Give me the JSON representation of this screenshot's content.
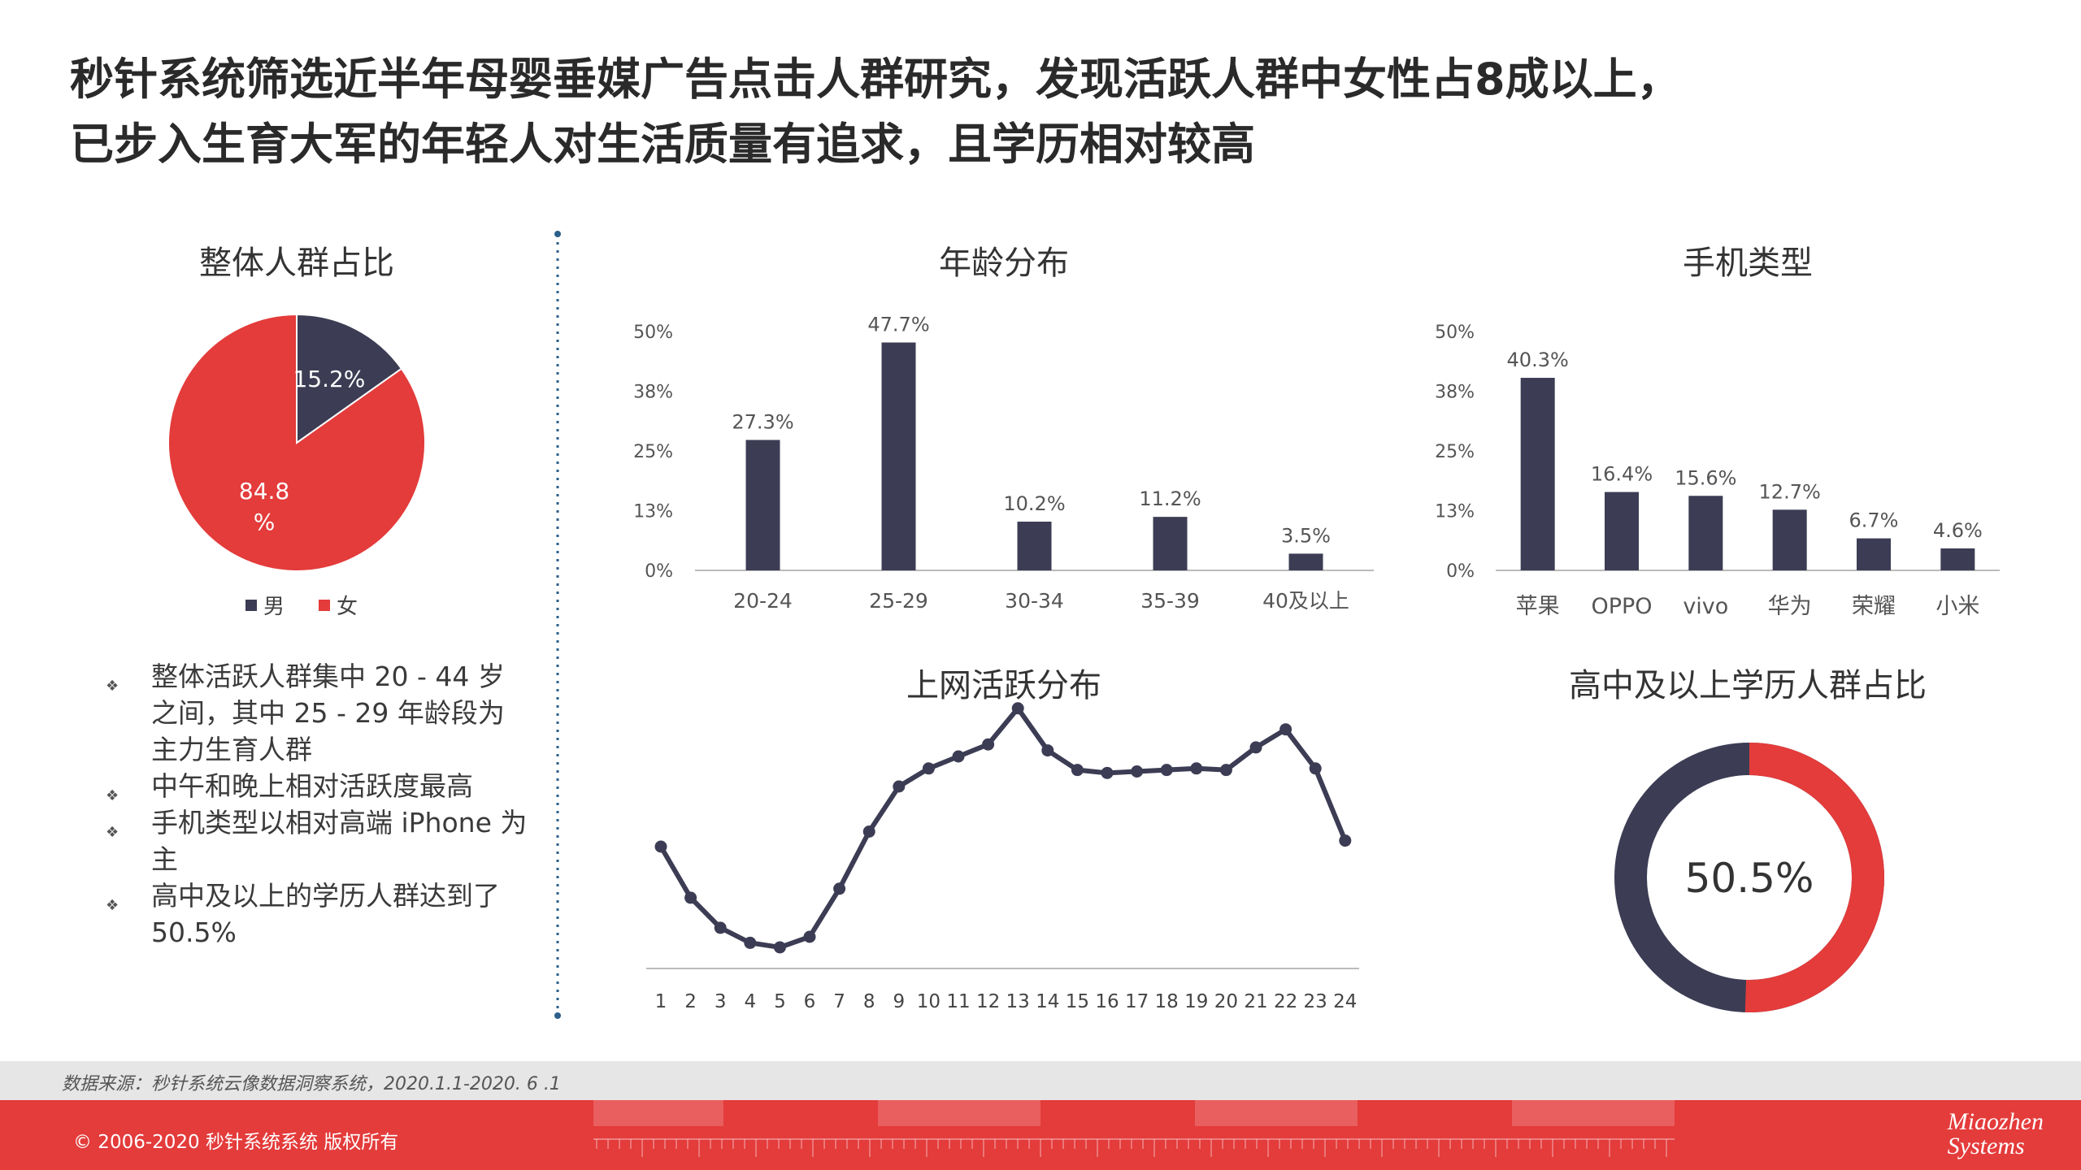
{
  "header": {
    "title_line1": "秒针系统筛选近半年母婴垂媒广告点击人群研究，发现活跃人群中女性占8成以上，",
    "title_line2": "已步入生育大军的年轻人对生活质量有追求，且学历相对较高"
  },
  "colors": {
    "navy": "#3c3d54",
    "red": "#e43b3b"
  },
  "bullets": [
    "整体活跃人群集中 20 - 44 岁之间，其中 25 - 29 年龄段为主力生育人群",
    "中午和晚上相对活跃度最高",
    "手机类型以相对高端 iPhone 为主",
    "高中及以上的学历人群达到了 50.5%"
  ],
  "bullet_marker": "❖",
  "chart_data": [
    {
      "type": "pie",
      "title": "整体人群占比",
      "categories": [
        "男",
        "女"
      ],
      "values": [
        15.2,
        84.8
      ],
      "labels": [
        "15.2%",
        "84.8\n%"
      ],
      "colors": [
        "#3c3d54",
        "#e43b3b"
      ],
      "legend": "bottom"
    },
    {
      "type": "bar",
      "title": "年龄分布",
      "categories": [
        "20-24",
        "25-29",
        "30-34",
        "35-39",
        "40及以上"
      ],
      "values": [
        27.3,
        47.7,
        10.2,
        11.2,
        3.5
      ],
      "labels": [
        "27.3%",
        "47.7%",
        "10.2%",
        "11.2%",
        "3.5%"
      ],
      "yticks": [
        "0%",
        "13%",
        "25%",
        "38%",
        "50%"
      ],
      "ylim": [
        0,
        50
      ]
    },
    {
      "type": "bar",
      "title": "手机类型",
      "categories": [
        "苹果",
        "OPPO",
        "vivo",
        "华为",
        "荣耀",
        "小米"
      ],
      "values": [
        40.3,
        16.4,
        15.6,
        12.7,
        6.7,
        4.6
      ],
      "labels": [
        "40.3%",
        "16.4%",
        "15.6%",
        "12.7%",
        "6.7%",
        "4.6%"
      ],
      "yticks": [
        "0%",
        "13%",
        "25%",
        "38%",
        "50%"
      ],
      "ylim": [
        0,
        50
      ]
    },
    {
      "type": "line",
      "title": "上网活跃分布",
      "x": [
        "1",
        "2",
        "3",
        "4",
        "5",
        "6",
        "7",
        "8",
        "9",
        "10",
        "11",
        "12",
        "13",
        "14",
        "15",
        "16",
        "17",
        "18",
        "19",
        "20",
        "21",
        "22",
        "23",
        "24"
      ],
      "values": [
        4.0,
        2.3,
        1.3,
        0.8,
        0.65,
        1.0,
        2.6,
        4.5,
        6.0,
        6.6,
        7.0,
        7.4,
        8.6,
        7.2,
        6.55,
        6.45,
        6.5,
        6.55,
        6.6,
        6.55,
        7.3,
        7.9,
        6.6,
        4.2
      ],
      "ylim": [
        0,
        10
      ],
      "ylabel": ""
    },
    {
      "type": "donut",
      "title": "高中及以上学历人群占比",
      "value": 50.5,
      "center_label": "50.5%",
      "colors": [
        "#e43b3b",
        "#3c3d54"
      ]
    }
  ],
  "footer": {
    "source": "数据来源：秒针系统云像数据洞察系统，2020.1.1-2020. 6 .1",
    "copyright": "© 2006-2020 秒针系统系统 版权所有",
    "logo_line1": "Miaozhen",
    "logo_line2": "Systems"
  }
}
